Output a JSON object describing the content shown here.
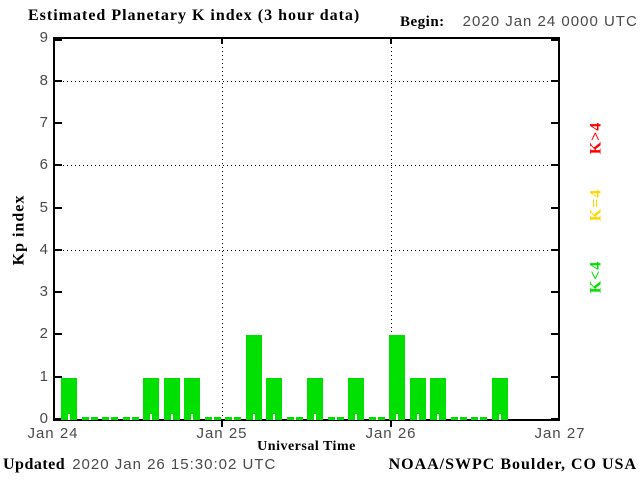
{
  "header": {
    "title": "Estimated Planetary K index (3 hour data)",
    "begin_label": "Begin:",
    "begin_value": "2020 Jan 24 0000 UTC"
  },
  "footer": {
    "updated_label": "Updated",
    "updated_value": "2020 Jan 26 15:30:02 UTC",
    "source": "NOAA/SWPC Boulder, CO USA"
  },
  "chart_data": {
    "type": "bar",
    "title": "Estimated Planetary K index (3 hour data)",
    "xlabel": "Universal Time",
    "ylabel": "Kp index",
    "ylim": [
      0,
      9
    ],
    "y_ticks": [
      0,
      1,
      2,
      3,
      4,
      5,
      6,
      7,
      8,
      9
    ],
    "x_ticks": [
      "Jan 24",
      "Jan 25",
      "Jan 26",
      "Jan 27"
    ],
    "gridlines_y": [
      4,
      6,
      8
    ],
    "grid_style": "dotted",
    "interval_hours": 3,
    "begin": "2020 Jan 24 0000 UTC",
    "bar_color": "#00e000",
    "values": [
      1,
      0,
      0,
      0,
      1,
      1,
      1,
      0,
      0,
      2,
      1,
      0,
      1,
      0,
      1,
      0,
      2,
      1,
      1,
      0,
      0,
      1
    ],
    "legend": [
      {
        "label": "K>4",
        "color": "#ff0000"
      },
      {
        "label": "K=4",
        "color": "#ffd700"
      },
      {
        "label": "K<4",
        "color": "#00e000"
      }
    ],
    "legend_position": "right"
  }
}
